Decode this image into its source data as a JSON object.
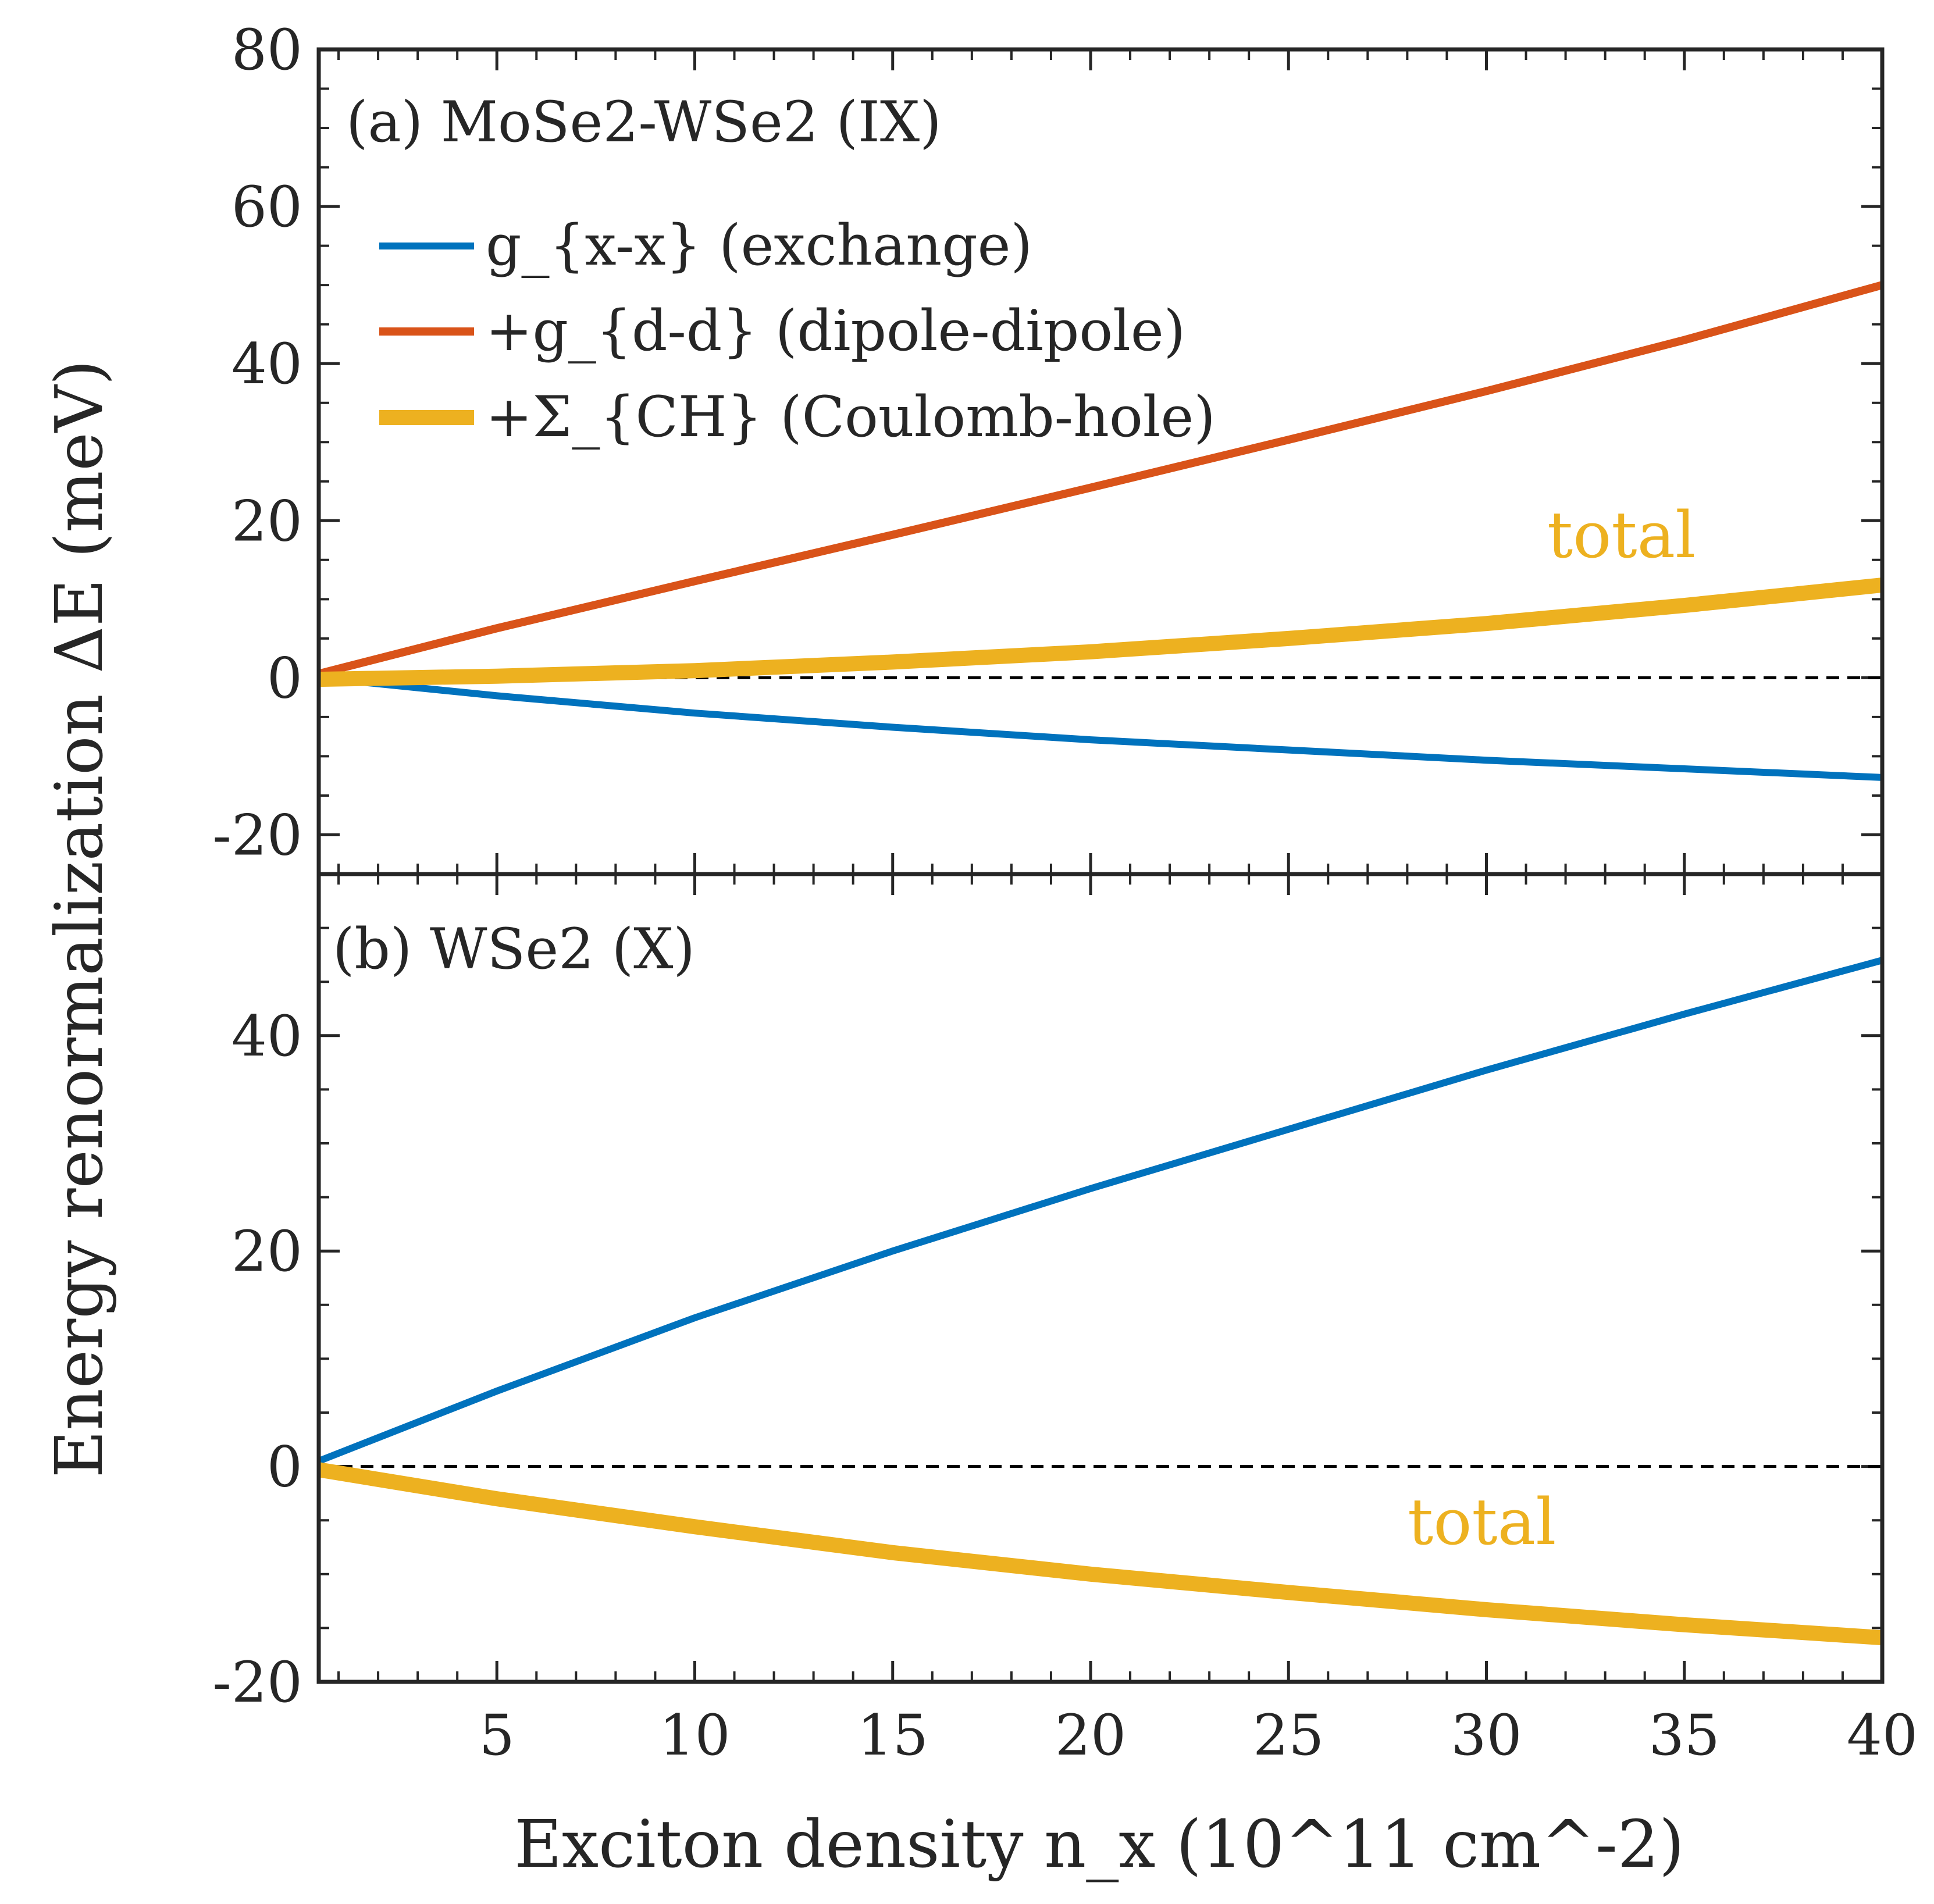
{
  "figure": {
    "ylabel": "Energy renormalization ΔE (meV)",
    "xlabel": "Exciton density n_x (10^11 cm^-2)"
  },
  "chart_data": [
    {
      "type": "line",
      "panel": "a",
      "title": "(a) MoSe2-WSe2 (IX)",
      "xlim": [
        0.5,
        40
      ],
      "ylim": [
        -25,
        80
      ],
      "yticks": [
        -20,
        0,
        20,
        40,
        60,
        80
      ],
      "xticks": [
        5,
        10,
        15,
        20,
        25,
        30,
        35,
        40
      ],
      "ytick_labels": [
        "-20",
        "0",
        "20",
        "40",
        "60",
        "80"
      ],
      "x": [
        0.5,
        5,
        10,
        15,
        20,
        25,
        30,
        35,
        40
      ],
      "series": [
        {
          "name": "g_{x-x} (exchange)",
          "color": "#0072BD",
          "values": [
            0,
            -2.3,
            -4.5,
            -6.3,
            -7.9,
            -9.2,
            -10.5,
            -11.6,
            -12.7
          ]
        },
        {
          "name": "+g_{d-d} (dipole-dipole)",
          "color": "#D95319",
          "values": [
            0.5,
            6.3,
            12.3,
            18.2,
            24.2,
            30.3,
            36.5,
            43.0,
            50.0
          ]
        },
        {
          "name": "+Σ_{CH} (Coulomb-hole)",
          "color": "#EDB120",
          "values": [
            -0.2,
            0.2,
            0.9,
            2.0,
            3.3,
            5.0,
            6.9,
            9.2,
            11.8
          ]
        }
      ],
      "legend": [
        "g_{x-x} (exchange)",
        "+g_{d-d} (dipole-dipole)",
        "+Σ_{CH} (Coulomb-hole)"
      ],
      "legend_position": "top-left",
      "annotation": "total",
      "reference_line": 0
    },
    {
      "type": "line",
      "panel": "b",
      "title": "(b) WSe2 (X)",
      "xlim": [
        0.5,
        40
      ],
      "ylim": [
        -20,
        55
      ],
      "yticks": [
        -20,
        0,
        20,
        40
      ],
      "xticks": [
        5,
        10,
        15,
        20,
        25,
        30,
        35,
        40
      ],
      "ytick_labels": [
        "-20",
        "0",
        "20",
        "40"
      ],
      "xtick_labels": [
        "5",
        "10",
        "15",
        "20",
        "25",
        "30",
        "35",
        "40"
      ],
      "x": [
        0.5,
        5,
        10,
        15,
        20,
        25,
        30,
        35,
        40
      ],
      "series": [
        {
          "name": "g_{x-x} (exchange)",
          "color": "#0072BD",
          "values": [
            0.5,
            7.0,
            13.8,
            20.0,
            25.8,
            31.3,
            36.8,
            42.0,
            47.0
          ]
        },
        {
          "name": "total",
          "color": "#EDB120",
          "values": [
            -0.3,
            -3.0,
            -5.6,
            -8.0,
            -10.0,
            -11.7,
            -13.3,
            -14.7,
            -15.9
          ]
        }
      ],
      "annotation": "total",
      "reference_line": 0
    }
  ]
}
